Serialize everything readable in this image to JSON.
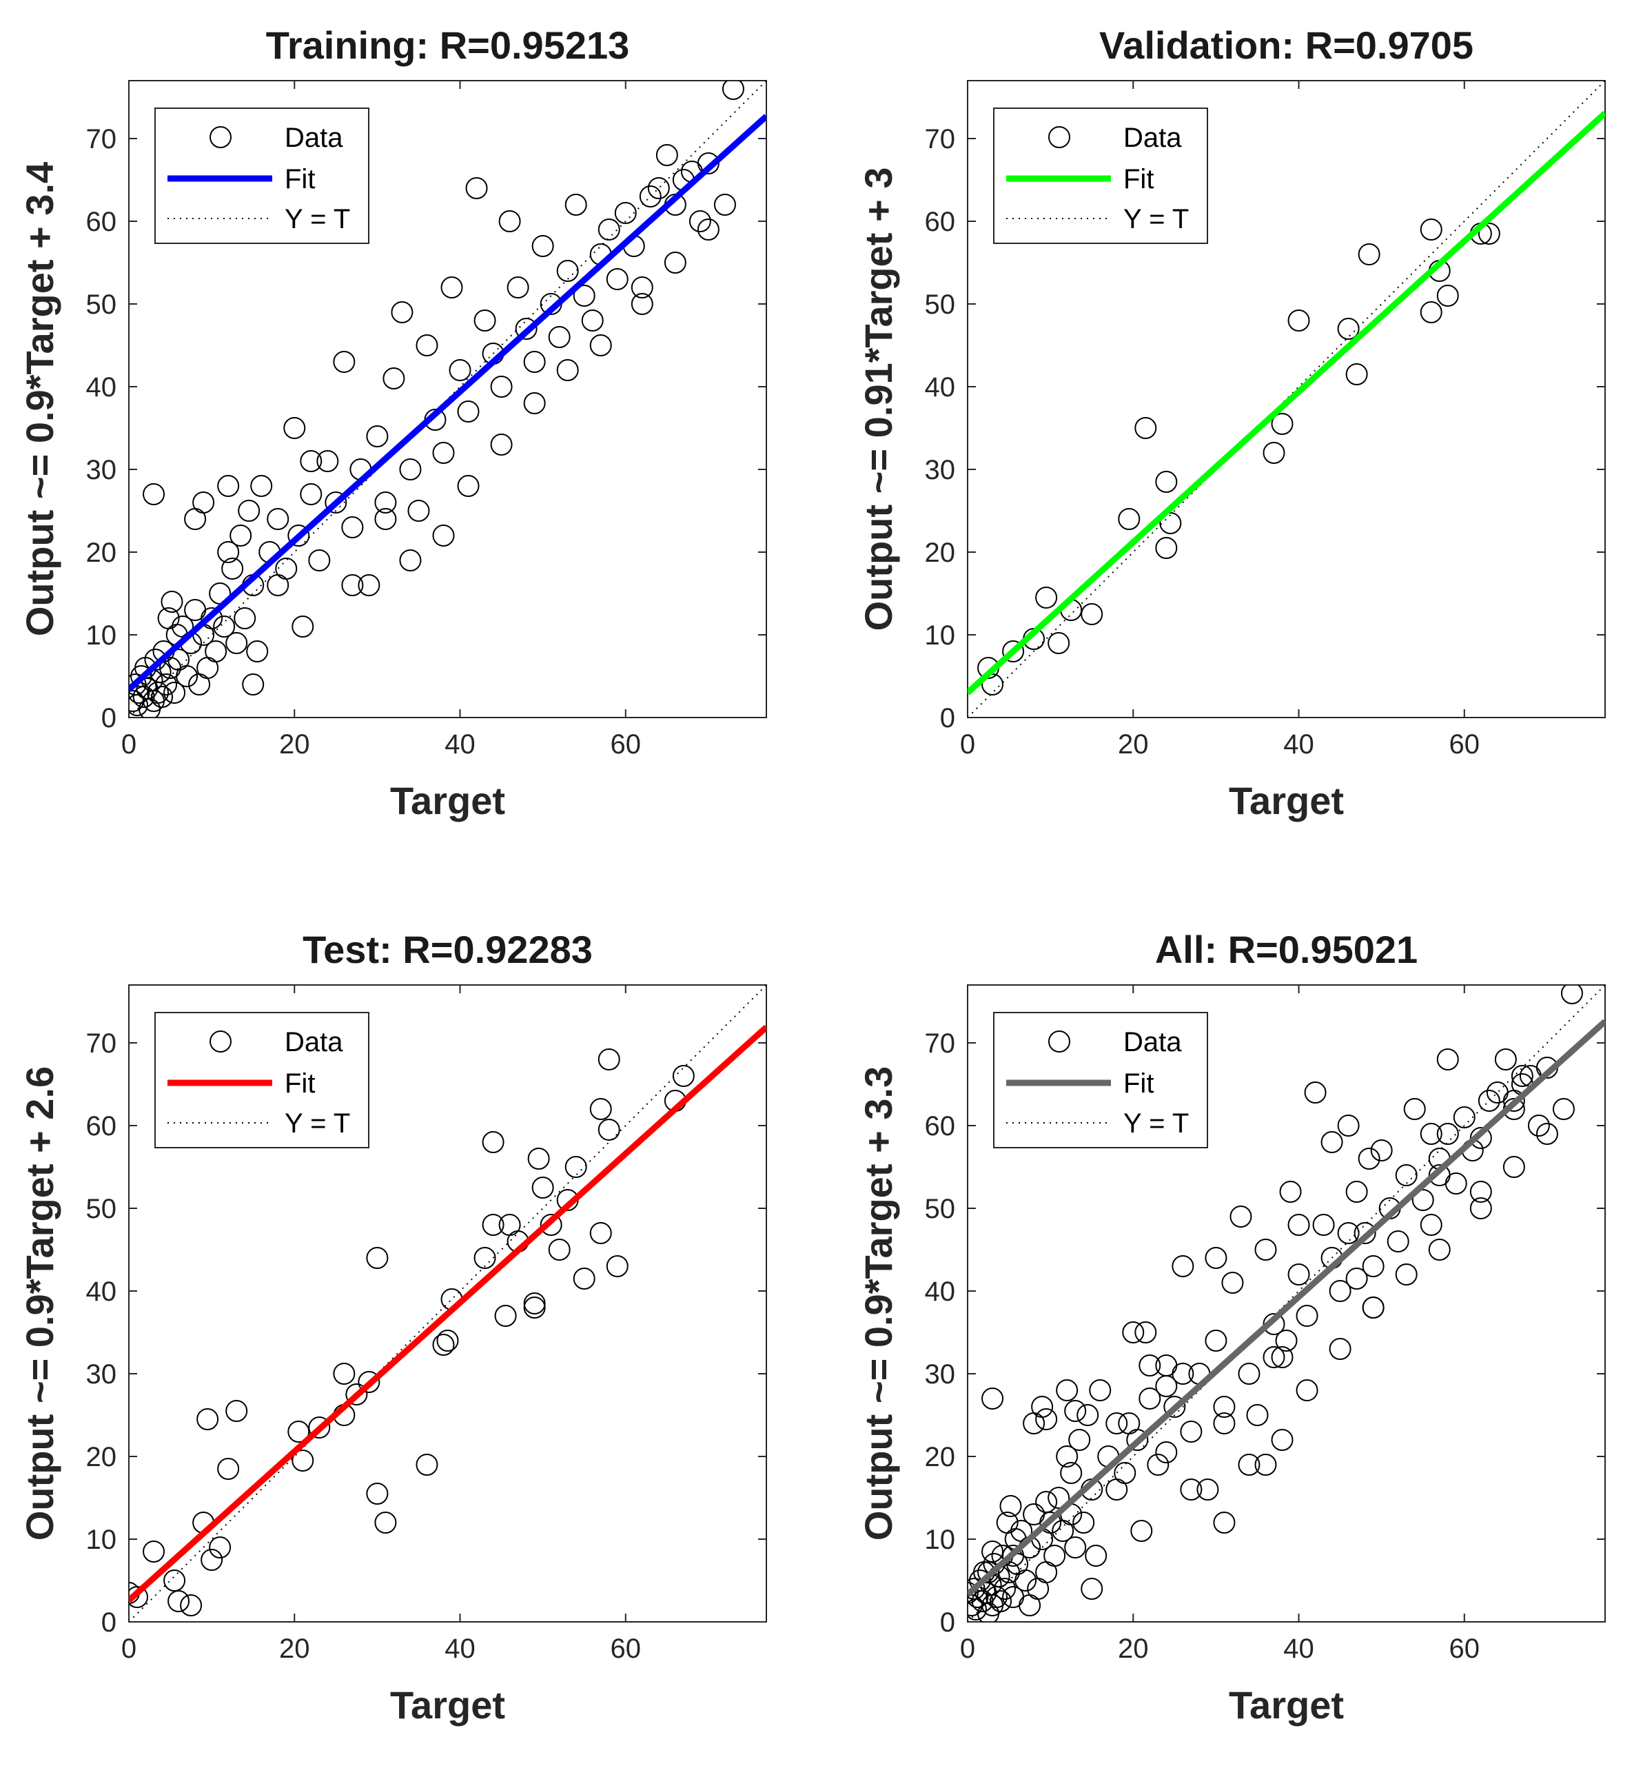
{
  "chart_data": [
    {
      "type": "scatter",
      "title": "Training: R=0.95213",
      "xlabel": "Target",
      "ylabel": "Output ~= 0.9*Target + 3.4",
      "xlim": [
        0,
        77
      ],
      "ylim": [
        0,
        77
      ],
      "xticks": [
        0,
        20,
        40,
        60
      ],
      "yticks": [
        0,
        10,
        20,
        30,
        40,
        50,
        60,
        70
      ],
      "fit": {
        "slope": 0.9,
        "intercept": 3.4,
        "color": "#0000ff"
      },
      "legend": [
        "Data",
        "Fit",
        "Y = T"
      ],
      "points": [
        [
          0.5,
          2
        ],
        [
          0.8,
          4
        ],
        [
          1,
          1.5
        ],
        [
          1.2,
          3
        ],
        [
          1.5,
          5
        ],
        [
          1.8,
          2.5
        ],
        [
          2,
          6
        ],
        [
          2.2,
          3.5
        ],
        [
          2.5,
          1
        ],
        [
          2.8,
          4.5
        ],
        [
          3,
          2
        ],
        [
          3.2,
          7
        ],
        [
          3.5,
          3
        ],
        [
          3.8,
          5.5
        ],
        [
          4,
          2.5
        ],
        [
          4.2,
          8
        ],
        [
          4.5,
          4
        ],
        [
          4.8,
          12
        ],
        [
          5,
          6
        ],
        [
          5.2,
          14
        ],
        [
          5.5,
          3
        ],
        [
          5.8,
          10
        ],
        [
          6,
          7
        ],
        [
          6.5,
          11
        ],
        [
          7,
          5
        ],
        [
          7.5,
          9
        ],
        [
          8,
          13
        ],
        [
          8.5,
          4
        ],
        [
          9,
          10
        ],
        [
          9.5,
          6
        ],
        [
          10,
          12
        ],
        [
          10.5,
          8
        ],
        [
          11,
          15
        ],
        [
          11.5,
          11
        ],
        [
          12,
          20
        ],
        [
          12.5,
          18
        ],
        [
          13,
          9
        ],
        [
          13.5,
          22
        ],
        [
          14,
          12
        ],
        [
          14.5,
          25
        ],
        [
          15,
          16
        ],
        [
          15.5,
          8
        ],
        [
          16,
          28
        ],
        [
          17,
          20
        ],
        [
          18,
          24
        ],
        [
          19,
          18
        ],
        [
          20,
          35
        ],
        [
          20.5,
          22
        ],
        [
          21,
          11
        ],
        [
          22,
          27
        ],
        [
          23,
          19
        ],
        [
          24,
          31
        ],
        [
          25,
          26
        ],
        [
          26,
          43
        ],
        [
          27,
          23
        ],
        [
          28,
          30
        ],
        [
          29,
          16
        ],
        [
          30,
          34
        ],
        [
          31,
          26
        ],
        [
          32,
          41
        ],
        [
          33,
          49
        ],
        [
          34,
          30
        ],
        [
          35,
          25
        ],
        [
          36,
          45
        ],
        [
          37,
          36
        ],
        [
          38,
          32
        ],
        [
          39,
          52
        ],
        [
          40,
          42
        ],
        [
          41,
          37
        ],
        [
          42,
          64
        ],
        [
          43,
          48
        ],
        [
          44,
          44
        ],
        [
          45,
          40
        ],
        [
          46,
          60
        ],
        [
          47,
          52
        ],
        [
          48,
          47
        ],
        [
          49,
          43
        ],
        [
          50,
          57
        ],
        [
          51,
          50
        ],
        [
          52,
          46
        ],
        [
          53,
          54
        ],
        [
          54,
          62
        ],
        [
          55,
          51
        ],
        [
          56,
          48
        ],
        [
          57,
          56
        ],
        [
          58,
          59
        ],
        [
          59,
          53
        ],
        [
          60,
          61
        ],
        [
          61,
          57
        ],
        [
          62,
          52
        ],
        [
          63,
          63
        ],
        [
          64,
          64
        ],
        [
          65,
          68
        ],
        [
          66,
          62
        ],
        [
          67,
          65
        ],
        [
          68,
          66
        ],
        [
          69,
          60
        ],
        [
          70,
          67
        ],
        [
          72,
          62
        ],
        [
          73,
          76
        ],
        [
          3,
          27
        ],
        [
          8,
          24
        ],
        [
          9,
          26
        ],
        [
          12,
          28
        ],
        [
          15,
          4
        ],
        [
          18,
          16
        ],
        [
          22,
          31
        ],
        [
          27,
          16
        ],
        [
          31,
          24
        ],
        [
          34,
          19
        ],
        [
          38,
          22
        ],
        [
          41,
          28
        ],
        [
          45,
          33
        ],
        [
          49,
          38
        ],
        [
          53,
          42
        ],
        [
          57,
          45
        ],
        [
          62,
          50
        ],
        [
          66,
          55
        ],
        [
          70,
          59
        ]
      ]
    },
    {
      "type": "scatter",
      "title": "Validation: R=0.9705",
      "xlabel": "Target",
      "ylabel": "Output ~= 0.91*Target + 3",
      "xlim": [
        0,
        77
      ],
      "ylim": [
        0,
        77
      ],
      "xticks": [
        0,
        20,
        40,
        60
      ],
      "yticks": [
        0,
        10,
        20,
        30,
        40,
        50,
        60,
        70
      ],
      "fit": {
        "slope": 0.91,
        "intercept": 3,
        "color": "#00ff00"
      },
      "legend": [
        "Data",
        "Fit",
        "Y = T"
      ],
      "points": [
        [
          2.5,
          6
        ],
        [
          3,
          4
        ],
        [
          5.5,
          8
        ],
        [
          8,
          9.5
        ],
        [
          9.5,
          14.5
        ],
        [
          11,
          9
        ],
        [
          12.5,
          13
        ],
        [
          15,
          12.5
        ],
        [
          19.5,
          24
        ],
        [
          21.5,
          35
        ],
        [
          24,
          28.5
        ],
        [
          24,
          20.5
        ],
        [
          24.5,
          23.5
        ],
        [
          37,
          32
        ],
        [
          38,
          35.5
        ],
        [
          40,
          48
        ],
        [
          46,
          47
        ],
        [
          47,
          41.5
        ],
        [
          48.5,
          56
        ],
        [
          56,
          59
        ],
        [
          56,
          49
        ],
        [
          57,
          54
        ],
        [
          58,
          51
        ],
        [
          62,
          58.5
        ],
        [
          63,
          58.5
        ]
      ]
    },
    {
      "type": "scatter",
      "title": "Test: R=0.92283",
      "xlabel": "Target",
      "ylabel": "Output ~= 0.9*Target + 2.6",
      "xlim": [
        0,
        77
      ],
      "ylim": [
        0,
        77
      ],
      "xticks": [
        0,
        20,
        40,
        60
      ],
      "yticks": [
        0,
        10,
        20,
        30,
        40,
        50,
        60,
        70
      ],
      "fit": {
        "slope": 0.9,
        "intercept": 2.6,
        "color": "#ff0000"
      },
      "legend": [
        "Data",
        "Fit",
        "Y = T"
      ],
      "points": [
        [
          0,
          3.5
        ],
        [
          1,
          3
        ],
        [
          3,
          8.5
        ],
        [
          5.5,
          5
        ],
        [
          6,
          2.5
        ],
        [
          7.5,
          2
        ],
        [
          9,
          12
        ],
        [
          9.5,
          24.5
        ],
        [
          10,
          7.5
        ],
        [
          11,
          9
        ],
        [
          12,
          18.5
        ],
        [
          13,
          25.5
        ],
        [
          20.5,
          23
        ],
        [
          21,
          19.5
        ],
        [
          23,
          23.5
        ],
        [
          26,
          30
        ],
        [
          26,
          25
        ],
        [
          27.5,
          27.5
        ],
        [
          29,
          29
        ],
        [
          30,
          44
        ],
        [
          30,
          15.5
        ],
        [
          31,
          12
        ],
        [
          36,
          19
        ],
        [
          38,
          33.5
        ],
        [
          38.5,
          34
        ],
        [
          39,
          39
        ],
        [
          43,
          44
        ],
        [
          44,
          58
        ],
        [
          44,
          48
        ],
        [
          45.5,
          37
        ],
        [
          46,
          48
        ],
        [
          47,
          46
        ],
        [
          49,
          38
        ],
        [
          49,
          38.5
        ],
        [
          49.5,
          56
        ],
        [
          50,
          52.5
        ],
        [
          51,
          48
        ],
        [
          52,
          45
        ],
        [
          53,
          51
        ],
        [
          54,
          55
        ],
        [
          55,
          41.5
        ],
        [
          57,
          62
        ],
        [
          57,
          47
        ],
        [
          58,
          59.5
        ],
        [
          58,
          68
        ],
        [
          59,
          43
        ],
        [
          66,
          63
        ],
        [
          67,
          66
        ]
      ]
    },
    {
      "type": "scatter",
      "title": "All: R=0.95021",
      "xlabel": "Target",
      "ylabel": "Output ~= 0.9*Target + 3.3",
      "xlim": [
        0,
        77
      ],
      "ylim": [
        0,
        77
      ],
      "xticks": [
        0,
        20,
        40,
        60
      ],
      "yticks": [
        0,
        10,
        20,
        30,
        40,
        50,
        60,
        70
      ],
      "fit": {
        "slope": 0.9,
        "intercept": 3.3,
        "color": "#666666"
      },
      "legend": [
        "Data",
        "Fit",
        "Y = T"
      ],
      "points": [
        [
          0.5,
          2
        ],
        [
          0.8,
          4
        ],
        [
          1,
          1.5
        ],
        [
          1.2,
          3
        ],
        [
          1.5,
          5
        ],
        [
          1.8,
          2.5
        ],
        [
          2,
          6
        ],
        [
          2.2,
          3.5
        ],
        [
          2.5,
          1
        ],
        [
          2.8,
          4.5
        ],
        [
          3,
          2
        ],
        [
          3.2,
          7
        ],
        [
          3.5,
          3
        ],
        [
          3.8,
          5.5
        ],
        [
          4,
          2.5
        ],
        [
          4.2,
          8
        ],
        [
          4.5,
          4
        ],
        [
          4.8,
          12
        ],
        [
          5,
          6
        ],
        [
          5.2,
          14
        ],
        [
          5.5,
          3
        ],
        [
          5.8,
          10
        ],
        [
          6,
          7
        ],
        [
          6.5,
          11
        ],
        [
          7,
          5
        ],
        [
          7.5,
          9
        ],
        [
          8,
          13
        ],
        [
          8.5,
          4
        ],
        [
          9,
          10
        ],
        [
          9.5,
          6
        ],
        [
          10,
          12
        ],
        [
          10.5,
          8
        ],
        [
          11,
          15
        ],
        [
          11.5,
          11
        ],
        [
          12,
          20
        ],
        [
          12.5,
          18
        ],
        [
          13,
          9
        ],
        [
          13.5,
          22
        ],
        [
          14,
          12
        ],
        [
          14.5,
          25
        ],
        [
          15,
          16
        ],
        [
          15.5,
          8
        ],
        [
          16,
          28
        ],
        [
          17,
          20
        ],
        [
          18,
          24
        ],
        [
          19,
          18
        ],
        [
          20,
          35
        ],
        [
          20.5,
          22
        ],
        [
          21,
          11
        ],
        [
          22,
          27
        ],
        [
          23,
          19
        ],
        [
          24,
          31
        ],
        [
          25,
          26
        ],
        [
          26,
          43
        ],
        [
          27,
          23
        ],
        [
          28,
          30
        ],
        [
          29,
          16
        ],
        [
          30,
          34
        ],
        [
          31,
          26
        ],
        [
          32,
          41
        ],
        [
          33,
          49
        ],
        [
          34,
          30
        ],
        [
          35,
          25
        ],
        [
          36,
          45
        ],
        [
          37,
          36
        ],
        [
          38,
          32
        ],
        [
          39,
          52
        ],
        [
          40,
          42
        ],
        [
          41,
          37
        ],
        [
          42,
          64
        ],
        [
          43,
          48
        ],
        [
          44,
          44
        ],
        [
          45,
          40
        ],
        [
          46,
          60
        ],
        [
          47,
          52
        ],
        [
          48,
          47
        ],
        [
          49,
          43
        ],
        [
          50,
          57
        ],
        [
          51,
          50
        ],
        [
          52,
          46
        ],
        [
          53,
          54
        ],
        [
          54,
          62
        ],
        [
          55,
          51
        ],
        [
          56,
          48
        ],
        [
          57,
          56
        ],
        [
          58,
          59
        ],
        [
          59,
          53
        ],
        [
          60,
          61
        ],
        [
          61,
          57
        ],
        [
          62,
          52
        ],
        [
          63,
          63
        ],
        [
          64,
          64
        ],
        [
          65,
          68
        ],
        [
          66,
          62
        ],
        [
          67,
          65
        ],
        [
          68,
          66
        ],
        [
          69,
          60
        ],
        [
          70,
          67
        ],
        [
          72,
          62
        ],
        [
          73,
          76
        ],
        [
          3,
          27
        ],
        [
          8,
          24
        ],
        [
          9,
          26
        ],
        [
          12,
          28
        ],
        [
          15,
          4
        ],
        [
          18,
          16
        ],
        [
          22,
          31
        ],
        [
          27,
          16
        ],
        [
          31,
          24
        ],
        [
          34,
          19
        ],
        [
          38,
          22
        ],
        [
          41,
          28
        ],
        [
          45,
          33
        ],
        [
          49,
          38
        ],
        [
          53,
          42
        ],
        [
          57,
          45
        ],
        [
          62,
          50
        ],
        [
          66,
          55
        ],
        [
          70,
          59
        ],
        [
          2.5,
          6
        ],
        [
          5.5,
          8
        ],
        [
          9.5,
          14.5
        ],
        [
          12.5,
          13
        ],
        [
          19.5,
          24
        ],
        [
          21.5,
          35
        ],
        [
          24,
          28.5
        ],
        [
          24,
          20.5
        ],
        [
          37,
          32
        ],
        [
          40,
          48
        ],
        [
          46,
          47
        ],
        [
          47,
          41.5
        ],
        [
          48.5,
          56
        ],
        [
          56,
          59
        ],
        [
          57,
          54
        ],
        [
          62,
          58.5
        ],
        [
          0,
          3.5
        ],
        [
          3,
          8.5
        ],
        [
          7.5,
          2
        ],
        [
          9.5,
          24.5
        ],
        [
          13,
          25.5
        ],
        [
          26,
          30
        ],
        [
          30,
          44
        ],
        [
          31,
          12
        ],
        [
          36,
          19
        ],
        [
          38.5,
          34
        ],
        [
          44,
          58
        ],
        [
          49,
          38
        ],
        [
          58,
          68
        ],
        [
          66,
          63
        ],
        [
          67,
          66
        ]
      ]
    }
  ]
}
